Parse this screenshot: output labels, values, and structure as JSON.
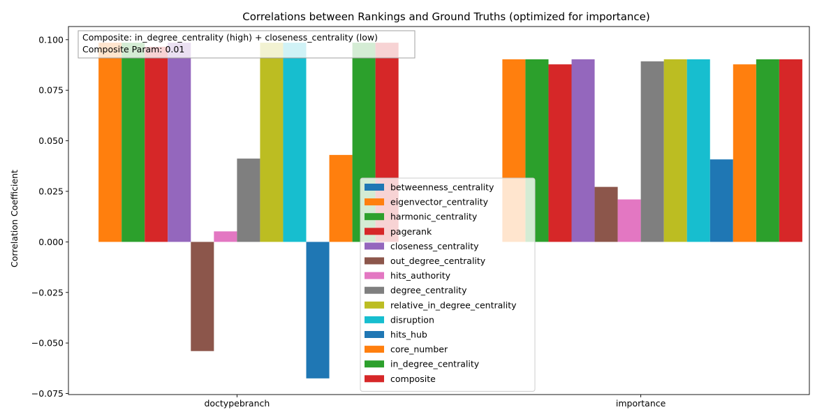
{
  "chart_data": {
    "type": "bar",
    "title": "Correlations between Rankings and Ground Truths (optimized for importance)",
    "xlabel": "",
    "ylabel": "Correlation Coefficient",
    "ylim": [
      -0.0755,
      0.1065
    ],
    "yticks": [
      -0.075,
      -0.05,
      -0.025,
      0.0,
      0.025,
      0.05,
      0.075,
      0.1
    ],
    "ytick_labels": [
      "−0.075",
      "−0.050",
      "−0.025",
      "0.000",
      "0.025",
      "0.050",
      "0.075",
      "0.100"
    ],
    "categories": [
      "doctypebranch",
      "importance"
    ],
    "legend_position": "lower-center",
    "annotation": {
      "lines": [
        "Composite: in_degree_centrality (high) + closeness_centrality (low)",
        "Composite Param: 0.01"
      ],
      "position": "top-left"
    },
    "series": [
      {
        "name": "betweenness_centrality",
        "color": "#1f77b4",
        "values": [
          0.0,
          0.0
        ]
      },
      {
        "name": "eigenvector_centrality",
        "color": "#ff7f0e",
        "values": [
          0.0985,
          0.0903
        ]
      },
      {
        "name": "harmonic_centrality",
        "color": "#2ca02c",
        "values": [
          0.0985,
          0.0903
        ]
      },
      {
        "name": "pagerank",
        "color": "#d62728",
        "values": [
          0.0965,
          0.0878
        ]
      },
      {
        "name": "closeness_centrality",
        "color": "#9467bd",
        "values": [
          0.0985,
          0.0903
        ]
      },
      {
        "name": "out_degree_centrality",
        "color": "#8c564b",
        "values": [
          -0.054,
          0.0272
        ]
      },
      {
        "name": "hits_authority",
        "color": "#e377c2",
        "values": [
          0.0052,
          0.021
        ]
      },
      {
        "name": "degree_centrality",
        "color": "#7f7f7f",
        "values": [
          0.0412,
          0.0893
        ]
      },
      {
        "name": "relative_in_degree_centrality",
        "color": "#bcbd22",
        "values": [
          0.0985,
          0.0903
        ]
      },
      {
        "name": "disruption",
        "color": "#17becf",
        "values": [
          0.0985,
          0.0903
        ]
      },
      {
        "name": "hits_hub",
        "color": "#1f77b4",
        "values": [
          -0.0675,
          0.0408
        ]
      },
      {
        "name": "core_number",
        "color": "#ff7f0e",
        "values": [
          0.043,
          0.0878
        ]
      },
      {
        "name": "in_degree_centrality",
        "color": "#2ca02c",
        "values": [
          0.0985,
          0.0903
        ]
      },
      {
        "name": "composite",
        "color": "#d62728",
        "values": [
          0.0985,
          0.0903
        ]
      }
    ]
  }
}
